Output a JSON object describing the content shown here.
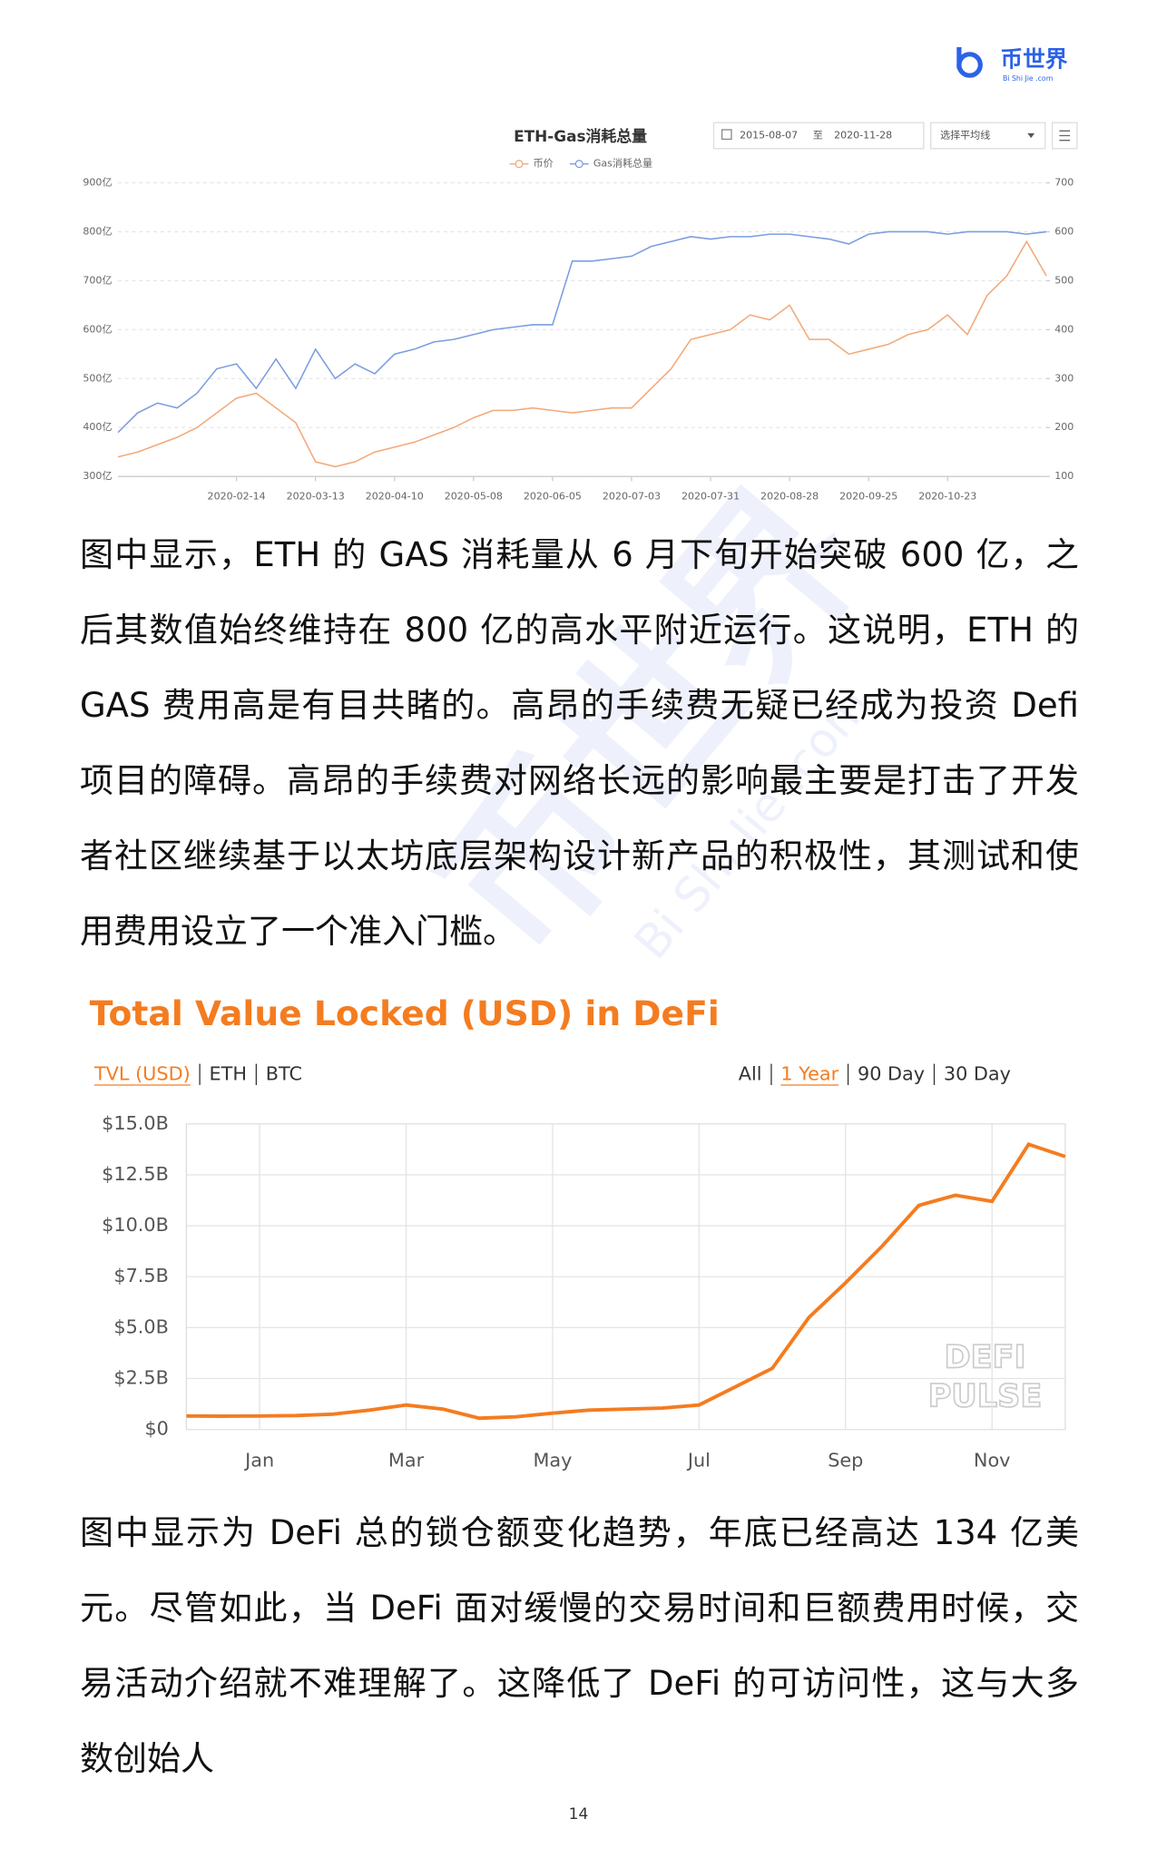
{
  "header": {
    "logo": "币世界",
    "logo_sub": "Bi Shi Jie .com"
  },
  "watermark": [
    "币世界",
    "Bi Shi Jie .com"
  ],
  "chart_data": [
    {
      "type": "line",
      "title": "ETH-Gas消耗总量",
      "controls": {
        "date_from": "2015-08-07",
        "date_sep": "至",
        "date_to": "2020-11-28",
        "average_select": "选择平均线"
      },
      "categories": [
        null,
        null,
        null,
        null,
        null,
        null,
        "2020-02-14",
        null,
        null,
        null,
        "2020-03-13",
        null,
        null,
        null,
        "2020-04-10",
        null,
        null,
        null,
        "2020-05-08",
        null,
        null,
        null,
        "2020-06-05",
        null,
        null,
        null,
        "2020-07-03",
        null,
        null,
        null,
        "2020-07-31",
        null,
        null,
        null,
        "2020-08-28",
        null,
        null,
        null,
        "2020-09-25",
        null,
        null,
        null,
        "2020-10-23",
        null,
        null,
        null,
        null,
        null
      ],
      "series": [
        {
          "name": "币价",
          "color": "#f3a97a",
          "axis": "y2",
          "values": [
            140,
            150,
            165,
            180,
            200,
            230,
            260,
            270,
            240,
            210,
            130,
            120,
            130,
            150,
            160,
            170,
            185,
            200,
            220,
            235,
            235,
            240,
            235,
            230,
            235,
            240,
            240,
            280,
            320,
            380,
            390,
            400,
            430,
            420,
            450,
            380,
            380,
            350,
            360,
            370,
            390,
            400,
            430,
            390,
            470,
            510,
            580,
            510
          ]
        },
        {
          "name": "Gas消耗总量",
          "color": "#7b9de0",
          "values": [
            390,
            430,
            450,
            440,
            470,
            520,
            530,
            480,
            540,
            480,
            560,
            500,
            530,
            510,
            550,
            560,
            575,
            580,
            590,
            600,
            605,
            610,
            610,
            740,
            740,
            745,
            750,
            770,
            780,
            790,
            785,
            790,
            790,
            795,
            795,
            790,
            785,
            775,
            795,
            800,
            800,
            800,
            795,
            800,
            800,
            800,
            795,
            800
          ]
        }
      ],
      "ylim": [
        300,
        900
      ],
      "yticks": [
        {
          "value": 300,
          "label": "300亿"
        },
        {
          "value": 400,
          "label": "400亿"
        },
        {
          "value": 500,
          "label": "500亿"
        },
        {
          "value": 600,
          "label": "600亿"
        },
        {
          "value": 700,
          "label": "700亿"
        },
        {
          "value": 800,
          "label": "800亿"
        },
        {
          "value": 900,
          "label": "900亿"
        }
      ],
      "y2lim": [
        100,
        700
      ],
      "y2ticks": [
        100,
        200,
        300,
        400,
        500,
        600,
        700
      ],
      "grid": true
    },
    {
      "type": "line",
      "title": "Total Value Locked (USD) in DeFi",
      "tabs_left": [
        "TVL (USD)",
        "ETH",
        "BTC"
      ],
      "tabs_right": [
        "All",
        "1 Year",
        "90 Day",
        "30 Day"
      ],
      "categories": [
        null,
        null,
        "Jan",
        null,
        null,
        null,
        "Mar",
        null,
        null,
        null,
        "May",
        null,
        null,
        null,
        "Jul",
        null,
        null,
        null,
        "Sep",
        null,
        null,
        null,
        "Nov",
        null,
        null
      ],
      "values": [
        0.66,
        0.65,
        0.66,
        0.68,
        0.75,
        0.95,
        1.2,
        1.0,
        0.55,
        0.62,
        0.8,
        0.95,
        1.0,
        1.05,
        1.2,
        2.1,
        3.0,
        5.5,
        7.2,
        9.0,
        11.0,
        11.5,
        11.2,
        14.0,
        13.4
      ],
      "color": "#f47c20",
      "ylim": [
        0,
        15
      ],
      "yticks": [
        {
          "value": 0,
          "label": "$0"
        },
        {
          "value": 2.5,
          "label": "$2.5B"
        },
        {
          "value": 5,
          "label": "$5.0B"
        },
        {
          "value": 7.5,
          "label": "$7.5B"
        },
        {
          "value": 10,
          "label": "$10.0B"
        },
        {
          "value": 12.5,
          "label": "$12.5B"
        },
        {
          "value": 15,
          "label": "$15.0B"
        }
      ],
      "watermark_text": [
        "DEFI",
        "PULSE"
      ],
      "grid": true
    }
  ],
  "paragraphs": [
    "图中显示，ETH 的 GAS 消耗量从 6 月下旬开始突破 600 亿，之后其数值始终维持在 800 亿的高水平附近运行。这说明，ETH 的 GAS 费用高是有目共睹的。高昂的手续费无疑已经成为投资 Defi 项目的障碍。高昂的手续费对网络长远的影响最主要是打击了开发者社区继续基于以太坊底层架构设计新产品的积极性，其测试和使用费用设立了一个准入门槛。",
    "图中显示为 DeFi 总的锁仓额变化趋势，年底已经高达 134 亿美元。尽管如此，当 DeFi 面对缓慢的交易时间和巨额费用时候，交易活动介绍就不难理解了。这降低了 DeFi 的可访问性，这与大多数创始人"
  ],
  "page_number": "14"
}
